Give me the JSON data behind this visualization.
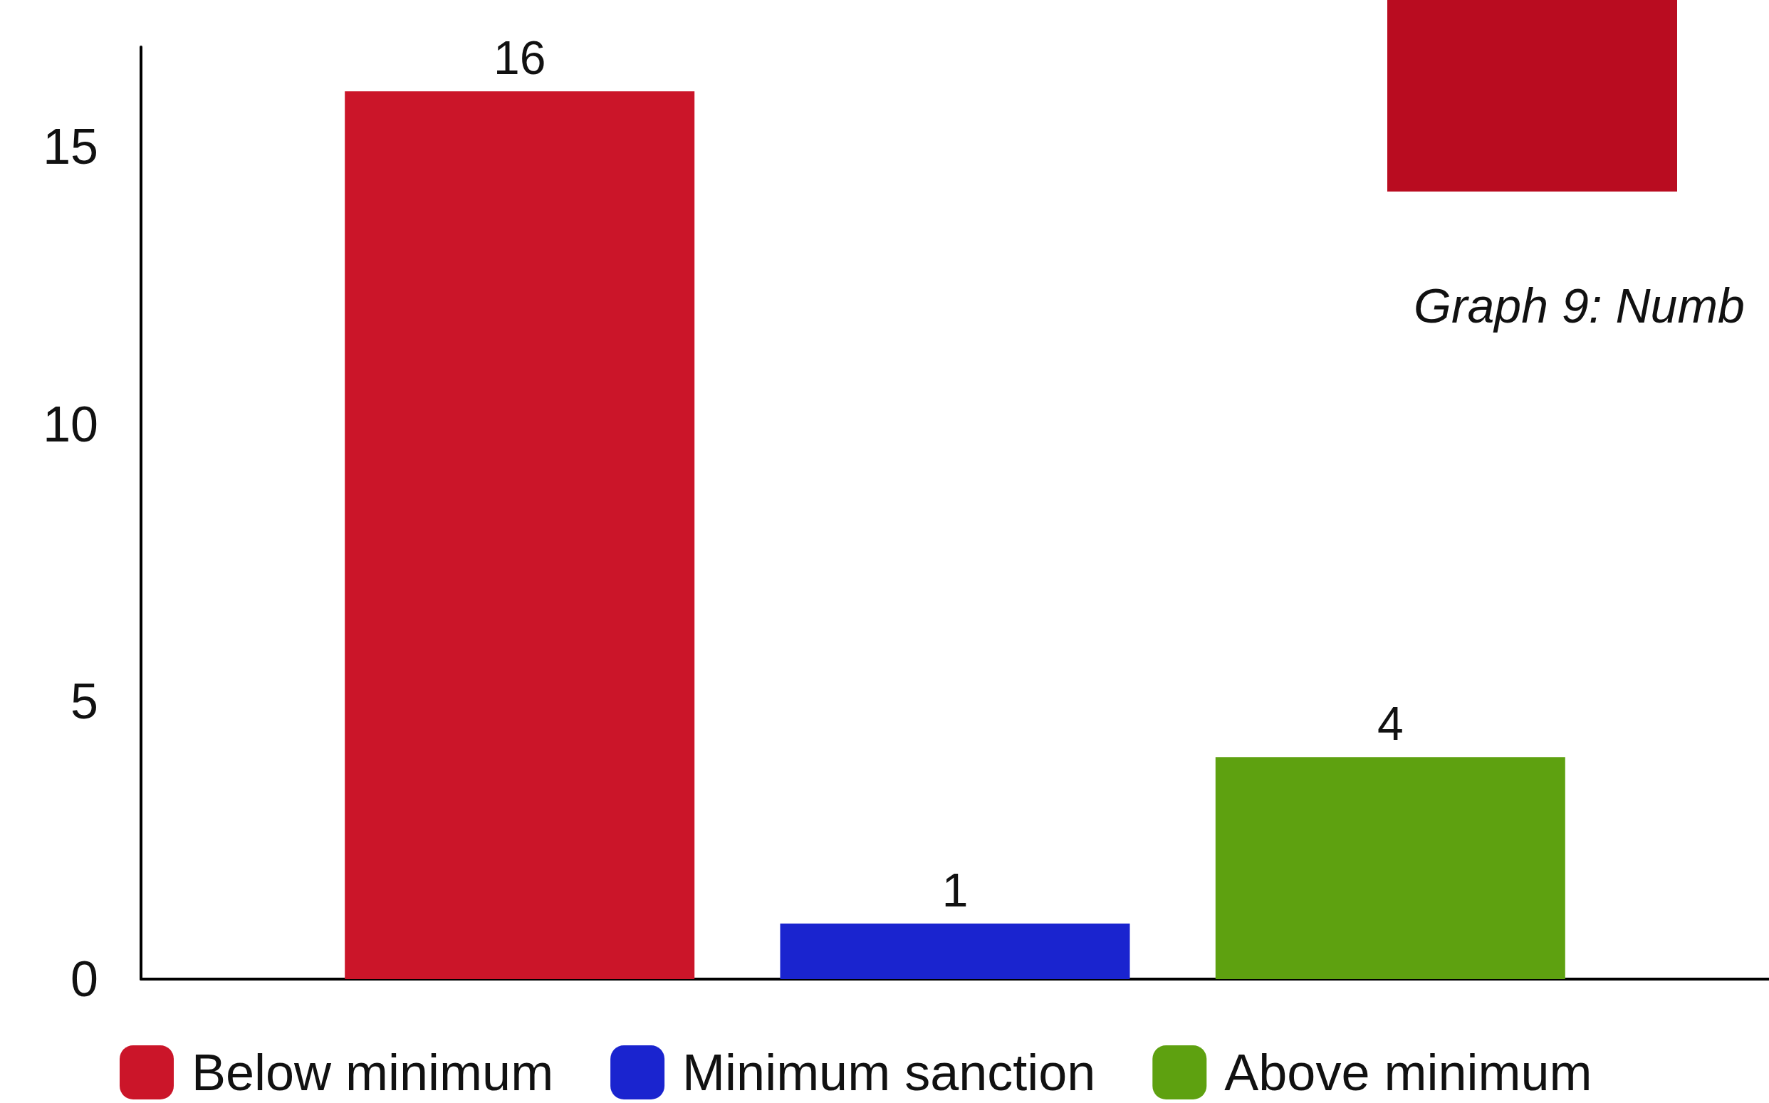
{
  "chart_data": {
    "type": "bar",
    "categories": [
      null
    ],
    "series": [
      {
        "name": "Below minimum",
        "color": "#cb1529",
        "values": [
          16
        ]
      },
      {
        "name": "Minimum sanction",
        "color": "#1a24cf",
        "values": [
          1
        ]
      },
      {
        "name": "Above minimum",
        "color": "#5ea110",
        "values": [
          4
        ]
      }
    ],
    "ylim": [
      0,
      16.8
    ],
    "yticks": [
      0,
      5,
      10,
      15
    ],
    "data_labels": true,
    "legend": "bottom",
    "grid": false,
    "annotations": [
      "Graph 9: Numb"
    ]
  }
}
